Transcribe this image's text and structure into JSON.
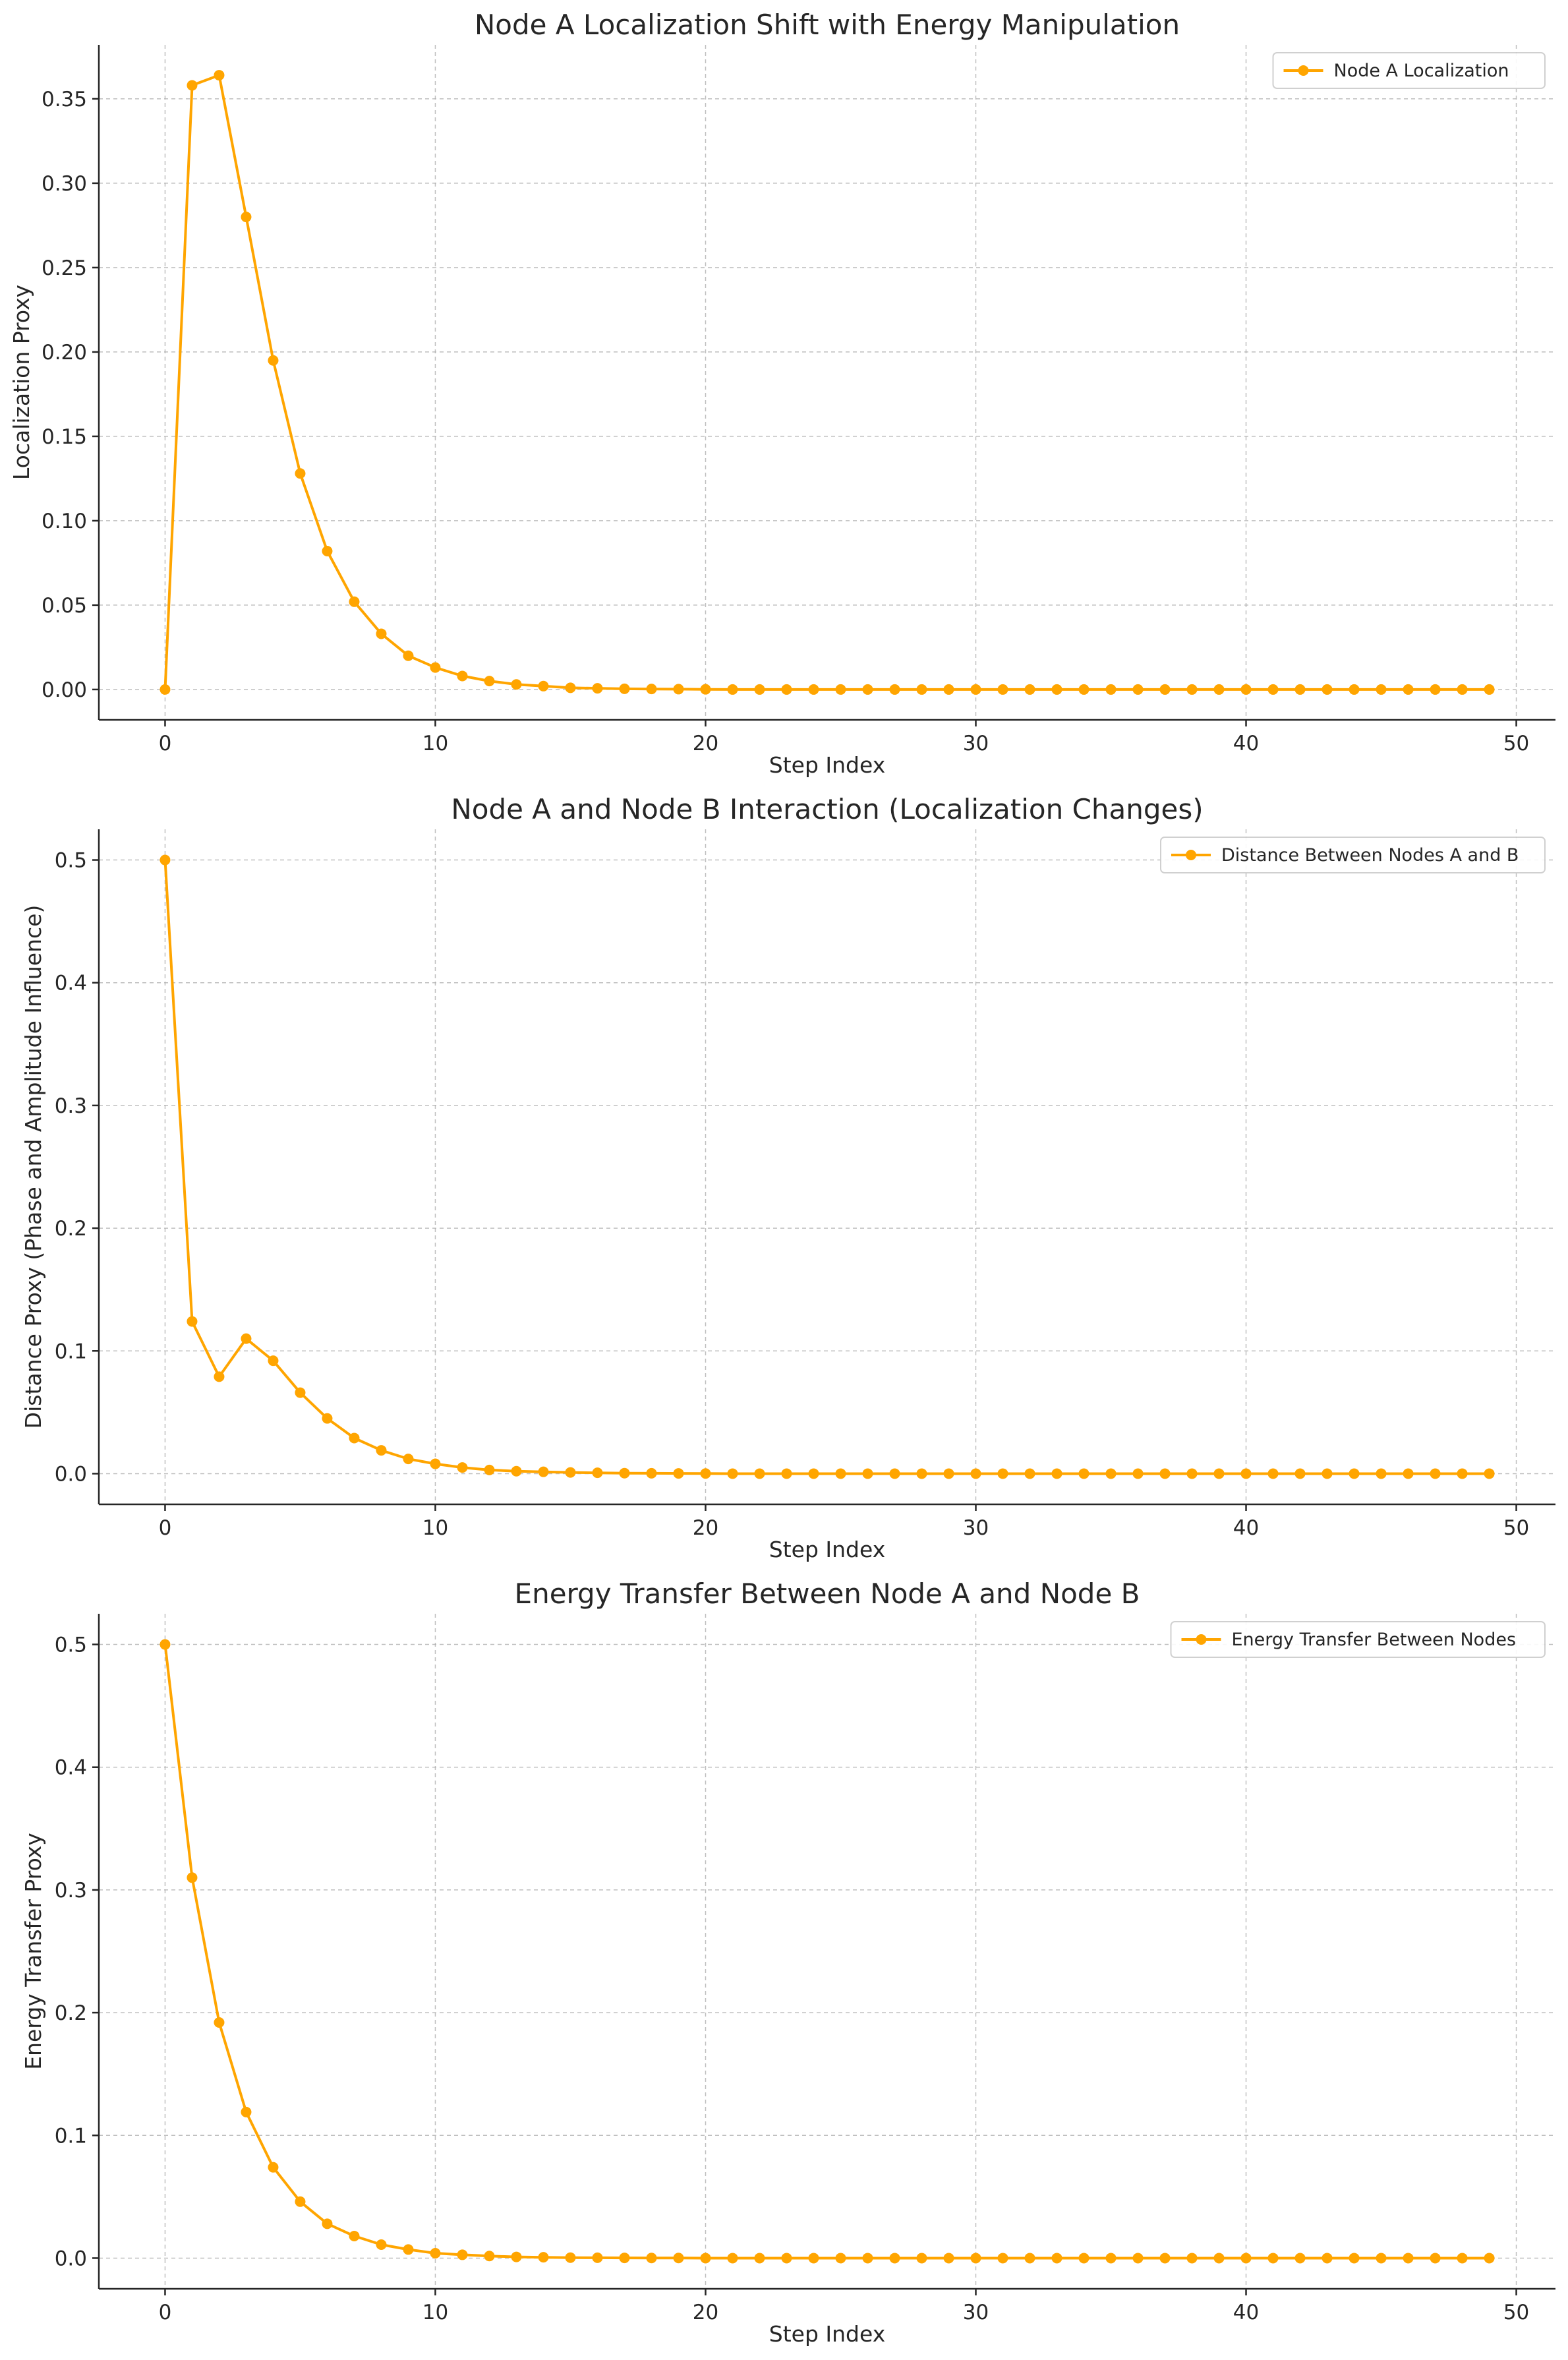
{
  "chart_data": [
    {
      "type": "line",
      "title": "Node A Localization Shift with Energy Manipulation",
      "xlabel": "Step Index",
      "ylabel": "Localization Proxy",
      "xlim": [
        -2.45,
        51.45
      ],
      "ylim": [
        -0.018,
        0.382
      ],
      "xticks": [
        0,
        10,
        20,
        30,
        40,
        50
      ],
      "yticks": [
        0.0,
        0.05,
        0.1,
        0.15,
        0.2,
        0.25,
        0.3,
        0.35
      ],
      "ytick_decimals": 2,
      "grid": true,
      "legend_position": "top-right",
      "color": "#FFA500",
      "series": [
        {
          "name": "Node A Localization",
          "x": [
            0,
            1,
            2,
            3,
            4,
            5,
            6,
            7,
            8,
            9,
            10,
            11,
            12,
            13,
            14,
            15,
            16,
            17,
            18,
            19,
            20,
            21,
            22,
            23,
            24,
            25,
            26,
            27,
            28,
            29,
            30,
            31,
            32,
            33,
            34,
            35,
            36,
            37,
            38,
            39,
            40,
            41,
            42,
            43,
            44,
            45,
            46,
            47,
            48,
            49
          ],
          "y": [
            0.0,
            0.358,
            0.364,
            0.28,
            0.195,
            0.128,
            0.082,
            0.052,
            0.033,
            0.02,
            0.013,
            0.008,
            0.005,
            0.003,
            0.002,
            0.001,
            0.0007,
            0.0004,
            0.0003,
            0.0002,
            0.0001,
            0,
            0,
            0,
            0,
            0,
            0,
            0,
            0,
            0,
            0,
            0,
            0,
            0,
            0,
            0,
            0,
            0,
            0,
            0,
            0,
            0,
            0,
            0,
            0,
            0,
            0,
            0,
            0,
            0
          ]
        }
      ]
    },
    {
      "type": "line",
      "title": "Node A and Node B Interaction (Localization Changes)",
      "xlabel": "Step Index",
      "ylabel": "Distance Proxy (Phase and Amplitude Influence)",
      "xlim": [
        -2.45,
        51.45
      ],
      "ylim": [
        -0.025,
        0.525
      ],
      "xticks": [
        0,
        10,
        20,
        30,
        40,
        50
      ],
      "yticks": [
        0.0,
        0.1,
        0.2,
        0.3,
        0.4,
        0.5
      ],
      "ytick_decimals": 1,
      "grid": true,
      "legend_position": "top-right",
      "color": "#FFA500",
      "series": [
        {
          "name": "Distance Between Nodes A and B",
          "x": [
            0,
            1,
            2,
            3,
            4,
            5,
            6,
            7,
            8,
            9,
            10,
            11,
            12,
            13,
            14,
            15,
            16,
            17,
            18,
            19,
            20,
            21,
            22,
            23,
            24,
            25,
            26,
            27,
            28,
            29,
            30,
            31,
            32,
            33,
            34,
            35,
            36,
            37,
            38,
            39,
            40,
            41,
            42,
            43,
            44,
            45,
            46,
            47,
            48,
            49
          ],
          "y": [
            0.5,
            0.124,
            0.079,
            0.11,
            0.092,
            0.066,
            0.045,
            0.029,
            0.019,
            0.012,
            0.008,
            0.005,
            0.003,
            0.002,
            0.0015,
            0.001,
            0.0007,
            0.0004,
            0.0003,
            0.0002,
            0.0001,
            0,
            0,
            0,
            0,
            0,
            0,
            0,
            0,
            0,
            0,
            0,
            0,
            0,
            0,
            0,
            0,
            0,
            0,
            0,
            0,
            0,
            0,
            0,
            0,
            0,
            0,
            0,
            0,
            0
          ]
        }
      ]
    },
    {
      "type": "line",
      "title": "Energy Transfer Between Node A and Node B",
      "xlabel": "Step Index",
      "ylabel": "Energy Transfer Proxy",
      "xlim": [
        -2.45,
        51.45
      ],
      "ylim": [
        -0.025,
        0.525
      ],
      "xticks": [
        0,
        10,
        20,
        30,
        40,
        50
      ],
      "yticks": [
        0.0,
        0.1,
        0.2,
        0.3,
        0.4,
        0.5
      ],
      "ytick_decimals": 1,
      "grid": true,
      "legend_position": "top-right",
      "color": "#FFA500",
      "series": [
        {
          "name": "Energy Transfer Between Nodes",
          "x": [
            0,
            1,
            2,
            3,
            4,
            5,
            6,
            7,
            8,
            9,
            10,
            11,
            12,
            13,
            14,
            15,
            16,
            17,
            18,
            19,
            20,
            21,
            22,
            23,
            24,
            25,
            26,
            27,
            28,
            29,
            30,
            31,
            32,
            33,
            34,
            35,
            36,
            37,
            38,
            39,
            40,
            41,
            42,
            43,
            44,
            45,
            46,
            47,
            48,
            49
          ],
          "y": [
            0.5,
            0.31,
            0.192,
            0.119,
            0.074,
            0.046,
            0.028,
            0.018,
            0.011,
            0.007,
            0.004,
            0.0027,
            0.0017,
            0.001,
            0.0007,
            0.0004,
            0.0003,
            0.0002,
            0.0001,
            0.0001,
            0,
            0,
            0,
            0,
            0,
            0,
            0,
            0,
            0,
            0,
            0,
            0,
            0,
            0,
            0,
            0,
            0,
            0,
            0,
            0,
            0,
            0,
            0,
            0,
            0,
            0,
            0,
            0,
            0,
            0
          ]
        }
      ]
    }
  ]
}
